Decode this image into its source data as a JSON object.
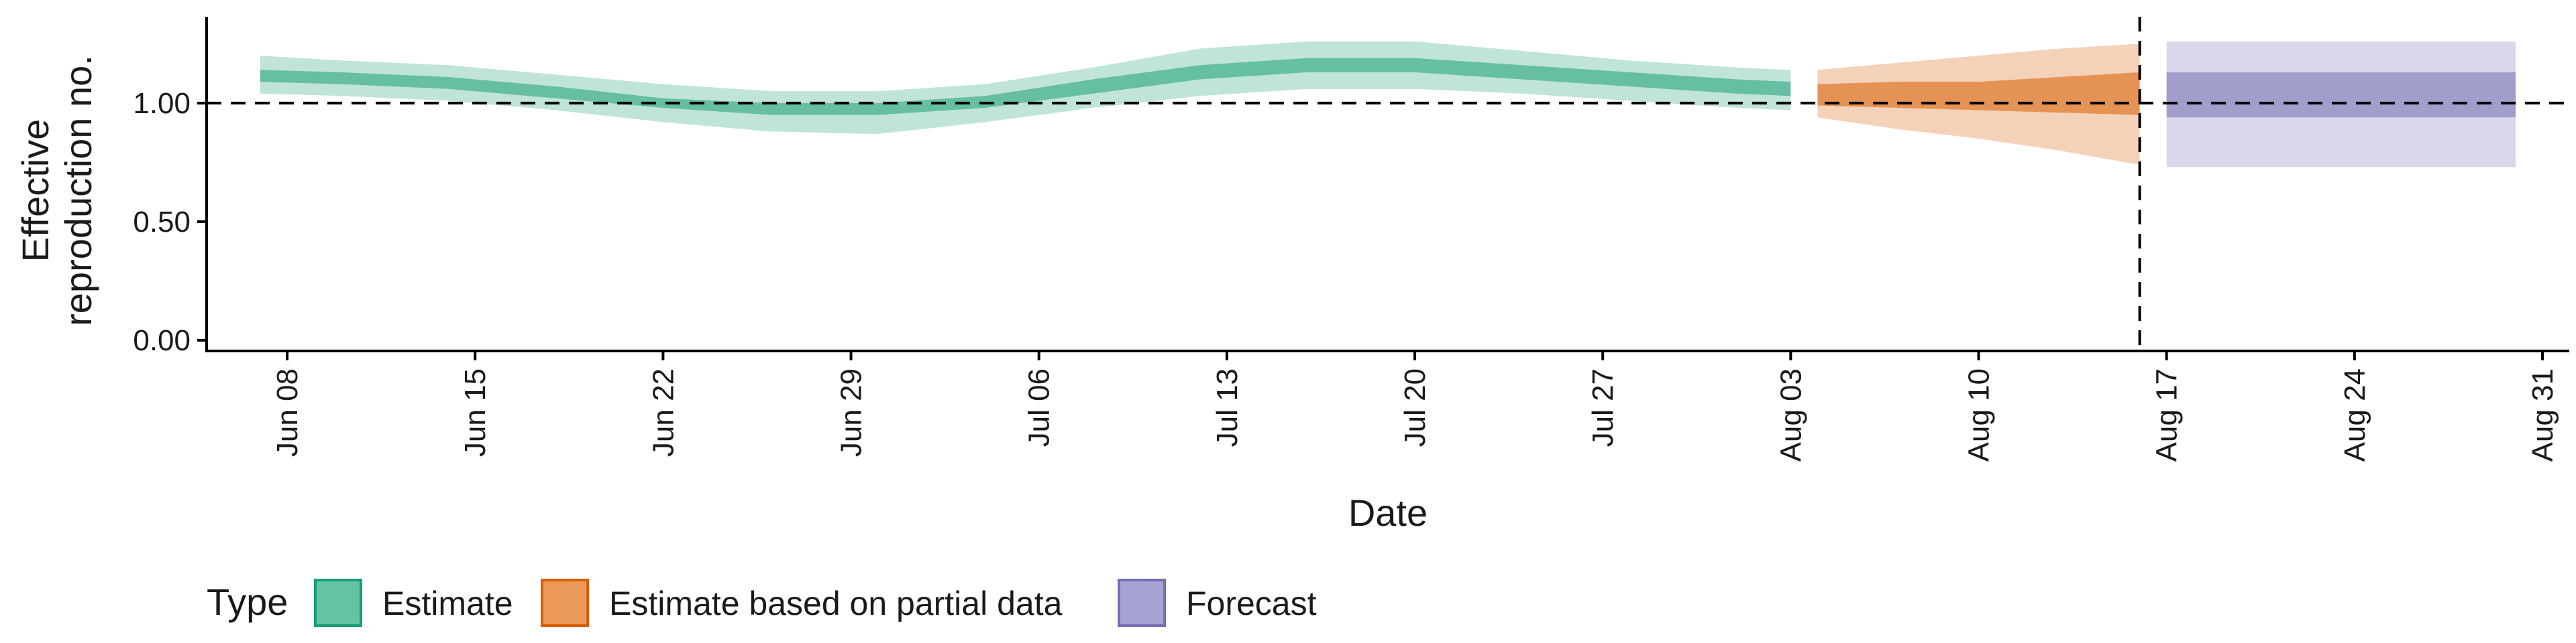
{
  "chart_data": {
    "type": "area",
    "xlabel": "Date",
    "ylabel_lines": [
      "Effective",
      "reproduction no."
    ],
    "ylim": [
      0.0,
      1.35
    ],
    "y_ticks": [
      0.0,
      0.5,
      1.0
    ],
    "y_tick_labels": [
      "0.00",
      "0.50",
      "1.00"
    ],
    "x_range": [
      "2020-06-05",
      "2020-09-01"
    ],
    "x_ticks": [
      "2020-06-08",
      "2020-06-15",
      "2020-06-22",
      "2020-06-29",
      "2020-07-06",
      "2020-07-13",
      "2020-07-20",
      "2020-07-27",
      "2020-08-03",
      "2020-08-10",
      "2020-08-17",
      "2020-08-24",
      "2020-08-31"
    ],
    "x_tick_labels": [
      "Jun 08",
      "Jun 15",
      "Jun 22",
      "Jun 29",
      "Jul 06",
      "Jul 13",
      "Jul 20",
      "Jul 27",
      "Aug 03",
      "Aug 10",
      "Aug 17",
      "Aug 24",
      "Aug 31"
    ],
    "reference_line_y": 1.0,
    "vertical_line_x": "2020-08-16",
    "series": [
      {
        "name": "Estimate",
        "color": "#1b9e77",
        "points": [
          {
            "x": "2020-06-07",
            "mid": [
              1.09,
              1.14
            ],
            "outer": [
              1.04,
              1.2
            ]
          },
          {
            "x": "2020-06-10",
            "mid": [
              1.08,
              1.13
            ],
            "outer": [
              1.03,
              1.18
            ]
          },
          {
            "x": "2020-06-14",
            "mid": [
              1.06,
              1.11
            ],
            "outer": [
              1.01,
              1.16
            ]
          },
          {
            "x": "2020-06-18",
            "mid": [
              1.02,
              1.07
            ],
            "outer": [
              0.97,
              1.12
            ]
          },
          {
            "x": "2020-06-22",
            "mid": [
              0.98,
              1.02
            ],
            "outer": [
              0.92,
              1.08
            ]
          },
          {
            "x": "2020-06-26",
            "mid": [
              0.95,
              1.0
            ],
            "outer": [
              0.88,
              1.05
            ]
          },
          {
            "x": "2020-06-30",
            "mid": [
              0.95,
              1.0
            ],
            "outer": [
              0.87,
              1.05
            ]
          },
          {
            "x": "2020-07-04",
            "mid": [
              0.98,
              1.03
            ],
            "outer": [
              0.92,
              1.08
            ]
          },
          {
            "x": "2020-07-08",
            "mid": [
              1.04,
              1.1
            ],
            "outer": [
              0.98,
              1.15
            ]
          },
          {
            "x": "2020-07-12",
            "mid": [
              1.1,
              1.16
            ],
            "outer": [
              1.03,
              1.23
            ]
          },
          {
            "x": "2020-07-16",
            "mid": [
              1.13,
              1.19
            ],
            "outer": [
              1.06,
              1.26
            ]
          },
          {
            "x": "2020-07-20",
            "mid": [
              1.13,
              1.19
            ],
            "outer": [
              1.06,
              1.26
            ]
          },
          {
            "x": "2020-07-24",
            "mid": [
              1.1,
              1.16
            ],
            "outer": [
              1.04,
              1.22
            ]
          },
          {
            "x": "2020-07-28",
            "mid": [
              1.07,
              1.13
            ],
            "outer": [
              1.01,
              1.18
            ]
          },
          {
            "x": "2020-08-01",
            "mid": [
              1.04,
              1.1
            ],
            "outer": [
              0.98,
              1.15
            ]
          },
          {
            "x": "2020-08-03",
            "mid": [
              1.03,
              1.09
            ],
            "outer": [
              0.97,
              1.14
            ]
          }
        ]
      },
      {
        "name": "Estimate based on partial data",
        "color": "#d95f02",
        "points": [
          {
            "x": "2020-08-04",
            "mid": [
              0.99,
              1.08
            ],
            "outer": [
              0.94,
              1.14
            ]
          },
          {
            "x": "2020-08-07",
            "mid": [
              0.98,
              1.09
            ],
            "outer": [
              0.89,
              1.17
            ]
          },
          {
            "x": "2020-08-10",
            "mid": [
              0.97,
              1.09
            ],
            "outer": [
              0.85,
              1.2
            ]
          },
          {
            "x": "2020-08-13",
            "mid": [
              0.96,
              1.11
            ],
            "outer": [
              0.8,
              1.23
            ]
          },
          {
            "x": "2020-08-16",
            "mid": [
              0.95,
              1.13
            ],
            "outer": [
              0.74,
              1.25
            ]
          }
        ]
      },
      {
        "name": "Forecast",
        "color": "#7570b3",
        "points": [
          {
            "x": "2020-08-17",
            "mid": [
              0.94,
              1.13
            ],
            "outer": [
              0.73,
              1.26
            ]
          },
          {
            "x": "2020-08-30",
            "mid": [
              0.94,
              1.13
            ],
            "outer": [
              0.73,
              1.26
            ]
          }
        ]
      }
    ],
    "legend": {
      "title": "Type",
      "position": "bottom-left",
      "items": [
        {
          "label": "Estimate",
          "fill": "#66c2a5",
          "stroke": "#1b9e77"
        },
        {
          "label": "Estimate based on partial data",
          "fill": "#eb9a5a",
          "stroke": "#d95f02"
        },
        {
          "label": "Forecast",
          "fill": "#a6a3d3",
          "stroke": "#7570b3"
        }
      ]
    },
    "grid": false
  }
}
